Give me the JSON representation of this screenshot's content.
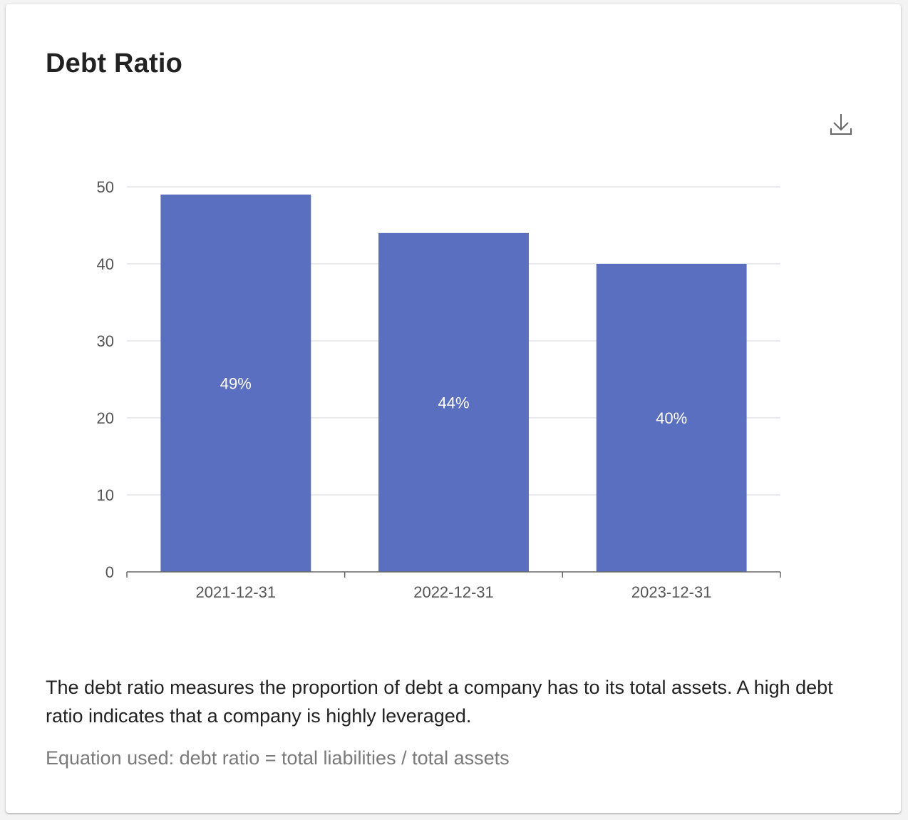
{
  "card": {
    "title": "Debt Ratio",
    "download_icon": "download-icon",
    "description": "The debt ratio measures the proportion of debt a company has to its total assets. A high debt ratio indicates that a company is highly leveraged.",
    "equation": "Equation used: debt ratio = total liabilities / total assets"
  },
  "colors": {
    "bar": "#5b6fc0",
    "grid": "#e2e4ee",
    "axis": "#666666",
    "tick_label": "#555555",
    "data_label": "#ffffff"
  },
  "chart_data": {
    "type": "bar",
    "title": "",
    "xlabel": "",
    "ylabel": "",
    "categories": [
      "2021-12-31",
      "2022-12-31",
      "2023-12-31"
    ],
    "values": [
      49,
      44,
      40
    ],
    "data_labels": [
      "49%",
      "44%",
      "40%"
    ],
    "ylim": [
      0,
      50
    ],
    "yticks": [
      0,
      10,
      20,
      30,
      40,
      50
    ],
    "grid": true,
    "legend": "none"
  }
}
